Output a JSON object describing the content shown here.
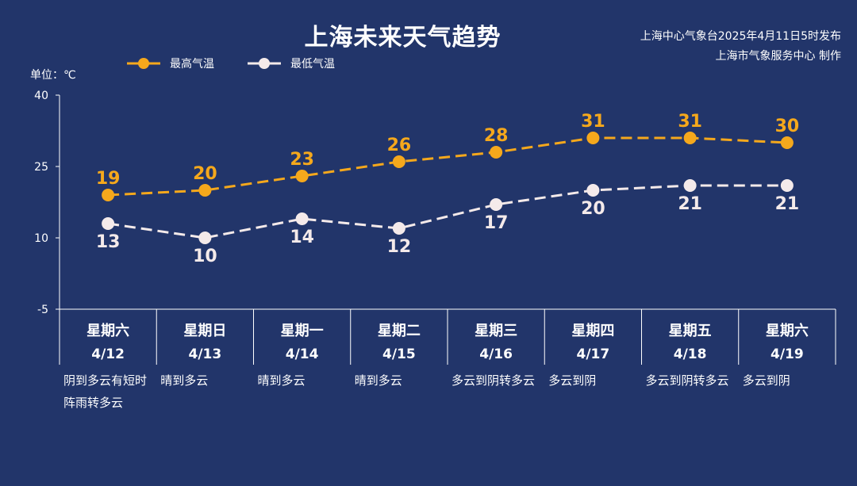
{
  "header": {
    "title": "上海未来天气趋势",
    "source_line1": "上海中心气象台2025年4月11日5时发布",
    "source_line2": "上海市气象服务中心 制作",
    "unit": "单位：℃"
  },
  "colors": {
    "background": "#22356a",
    "high": "#f5a81c",
    "low": "#f4eaea",
    "axis": "#ffffff"
  },
  "chart_data": {
    "type": "line",
    "y_ticks": [
      40,
      25,
      10,
      -5
    ],
    "ylim": [
      -5,
      40
    ],
    "categories": [
      "星期六",
      "星期日",
      "星期一",
      "星期二",
      "星期三",
      "星期四",
      "星期五",
      "星期六"
    ],
    "dates": [
      "4/12",
      "4/13",
      "4/14",
      "4/15",
      "4/16",
      "4/17",
      "4/18",
      "4/19"
    ],
    "weather": [
      "阴到多云有短时阵雨转多云",
      "晴到多云",
      "晴到多云",
      "晴到多云",
      "多云到阴转多云",
      "多云到阴",
      "多云到阴转多云",
      "多云到阴"
    ],
    "series": [
      {
        "name": "最高气温",
        "values": [
          19,
          20,
          23,
          26,
          28,
          31,
          31,
          30
        ]
      },
      {
        "name": "最低气温",
        "values": [
          13,
          10,
          14,
          12,
          17,
          20,
          21,
          21
        ]
      }
    ],
    "legend_position": "top-left"
  }
}
